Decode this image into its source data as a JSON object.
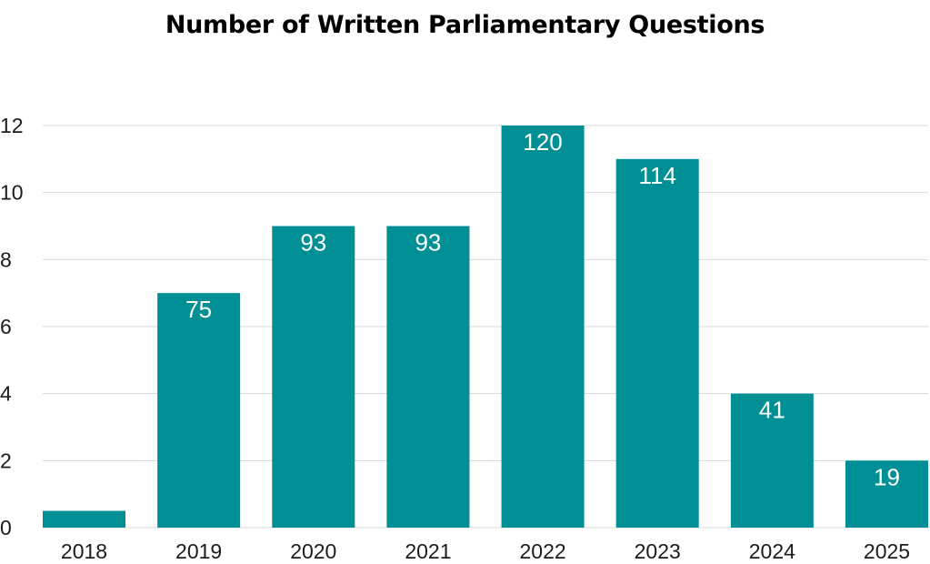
{
  "chart_data": {
    "type": "bar",
    "title": "Number of Written Parliamentary Questions",
    "categories": [
      "2018",
      "2019",
      "2020",
      "2021",
      "2022",
      "2023",
      "2024",
      "2025"
    ],
    "values": [
      0.5,
      7,
      9,
      9,
      12,
      11,
      4,
      2
    ],
    "data_labels": [
      "",
      "75",
      "93",
      "93",
      "120",
      "114",
      "41",
      "19"
    ],
    "yticks": [
      "0",
      "2",
      "4",
      "6",
      "8",
      "10",
      "12"
    ],
    "ylim": [
      0,
      12
    ],
    "grid": "horizontal",
    "xlabel": "",
    "ylabel": "",
    "colors": {
      "bar": "#008f94",
      "grid": "#d9d9d9",
      "label": "#ffffff"
    }
  }
}
